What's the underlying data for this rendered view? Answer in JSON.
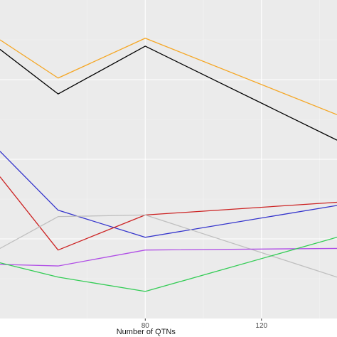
{
  "chart_data": {
    "type": "line",
    "xlabel": "Number of QTNs",
    "ylabel": "",
    "title": "",
    "xlim": [
      30,
      146
    ],
    "ylim": [
      0,
      1
    ],
    "x": [
      30,
      50,
      80,
      120,
      146
    ],
    "x_ticks": [
      80,
      120
    ],
    "grid": true,
    "legend": "none",
    "background": "#ebebeb",
    "series": [
      {
        "color": "#f5a623",
        "values": [
          0.875,
          0.755,
          0.88,
          null,
          0.64
        ]
      },
      {
        "color": "#000000",
        "values": [
          0.845,
          0.705,
          0.855,
          null,
          0.56
        ]
      },
      {
        "color": "#3333cc",
        "values": [
          0.525,
          0.34,
          0.255,
          null,
          0.355
        ]
      },
      {
        "color": "#cc2222",
        "values": [
          0.445,
          0.215,
          0.325,
          null,
          0.365
        ]
      },
      {
        "color": "#bfbfbf",
        "values": [
          0.22,
          0.32,
          0.325,
          null,
          0.13
        ]
      },
      {
        "color": "#b04ee6",
        "values": [
          0.17,
          0.165,
          0.215,
          null,
          0.22
        ]
      },
      {
        "color": "#33cc55",
        "values": [
          0.175,
          0.13,
          0.085,
          null,
          0.255
        ]
      }
    ]
  }
}
